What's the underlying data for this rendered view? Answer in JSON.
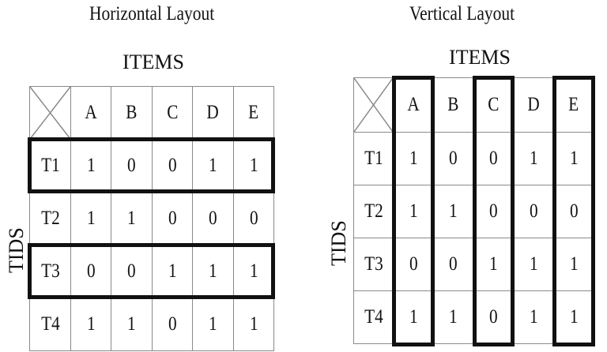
{
  "horizontal": {
    "title": "Horizontal Layout",
    "items_label": "ITEMS",
    "tids_label": "TIDS",
    "columns": [
      "A",
      "B",
      "C",
      "D",
      "E"
    ],
    "rows": [
      {
        "tid": "T1",
        "values": [
          "1",
          "0",
          "0",
          "1",
          "1"
        ],
        "highlighted": true
      },
      {
        "tid": "T2",
        "values": [
          "1",
          "1",
          "0",
          "0",
          "0"
        ],
        "highlighted": false
      },
      {
        "tid": "T3",
        "values": [
          "0",
          "0",
          "1",
          "1",
          "1"
        ],
        "highlighted": true
      },
      {
        "tid": "T4",
        "values": [
          "1",
          "1",
          "0",
          "1",
          "1"
        ],
        "highlighted": false
      }
    ]
  },
  "vertical": {
    "title": "Vertical Layout",
    "items_label": "ITEMS",
    "tids_label": "TIDS",
    "columns": [
      "A",
      "B",
      "C",
      "D",
      "E"
    ],
    "highlighted_columns": [
      "A",
      "C",
      "E"
    ],
    "rows": [
      {
        "tid": "T1",
        "values": [
          "1",
          "0",
          "0",
          "1",
          "1"
        ]
      },
      {
        "tid": "T2",
        "values": [
          "1",
          "1",
          "0",
          "0",
          "0"
        ]
      },
      {
        "tid": "T3",
        "values": [
          "0",
          "0",
          "1",
          "1",
          "1"
        ]
      },
      {
        "tid": "T4",
        "values": [
          "1",
          "1",
          "0",
          "1",
          "1"
        ]
      }
    ]
  }
}
